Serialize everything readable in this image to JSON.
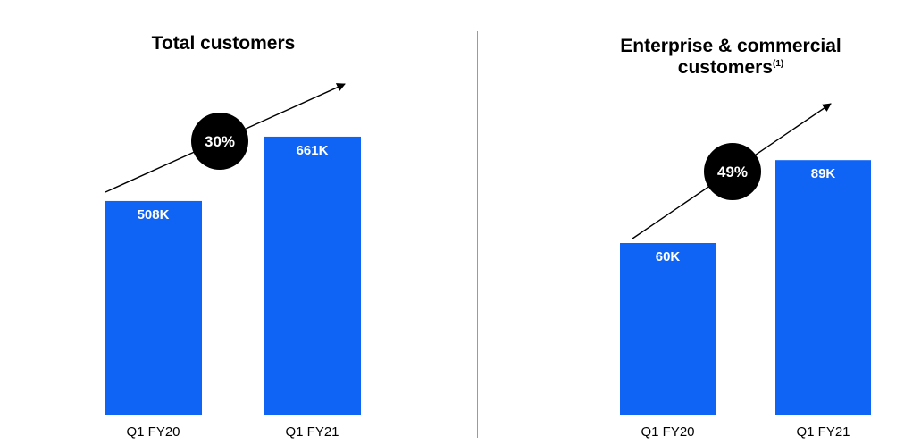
{
  "chart_data": [
    {
      "type": "bar",
      "title": "Total customers",
      "footnote": "",
      "categories": [
        "Q1 FY20",
        "Q1 FY21"
      ],
      "values": [
        508,
        661
      ],
      "value_labels": [
        "508K",
        "661K"
      ],
      "unit": "K",
      "growth_label": "30%",
      "ylim": [
        0,
        850
      ],
      "colors": {
        "bar": "#0f63f5",
        "growth_circle": "#000000"
      }
    },
    {
      "type": "bar",
      "title": "Enterprise & commercial customers",
      "footnote": "(1)",
      "categories": [
        "Q1 FY20",
        "Q1 FY21"
      ],
      "values": [
        60,
        89
      ],
      "value_labels": [
        "60K",
        "89K"
      ],
      "unit": "K",
      "growth_label": "49%",
      "ylim": [
        0,
        125
      ],
      "colors": {
        "bar": "#0f63f5",
        "growth_circle": "#000000"
      }
    }
  ]
}
